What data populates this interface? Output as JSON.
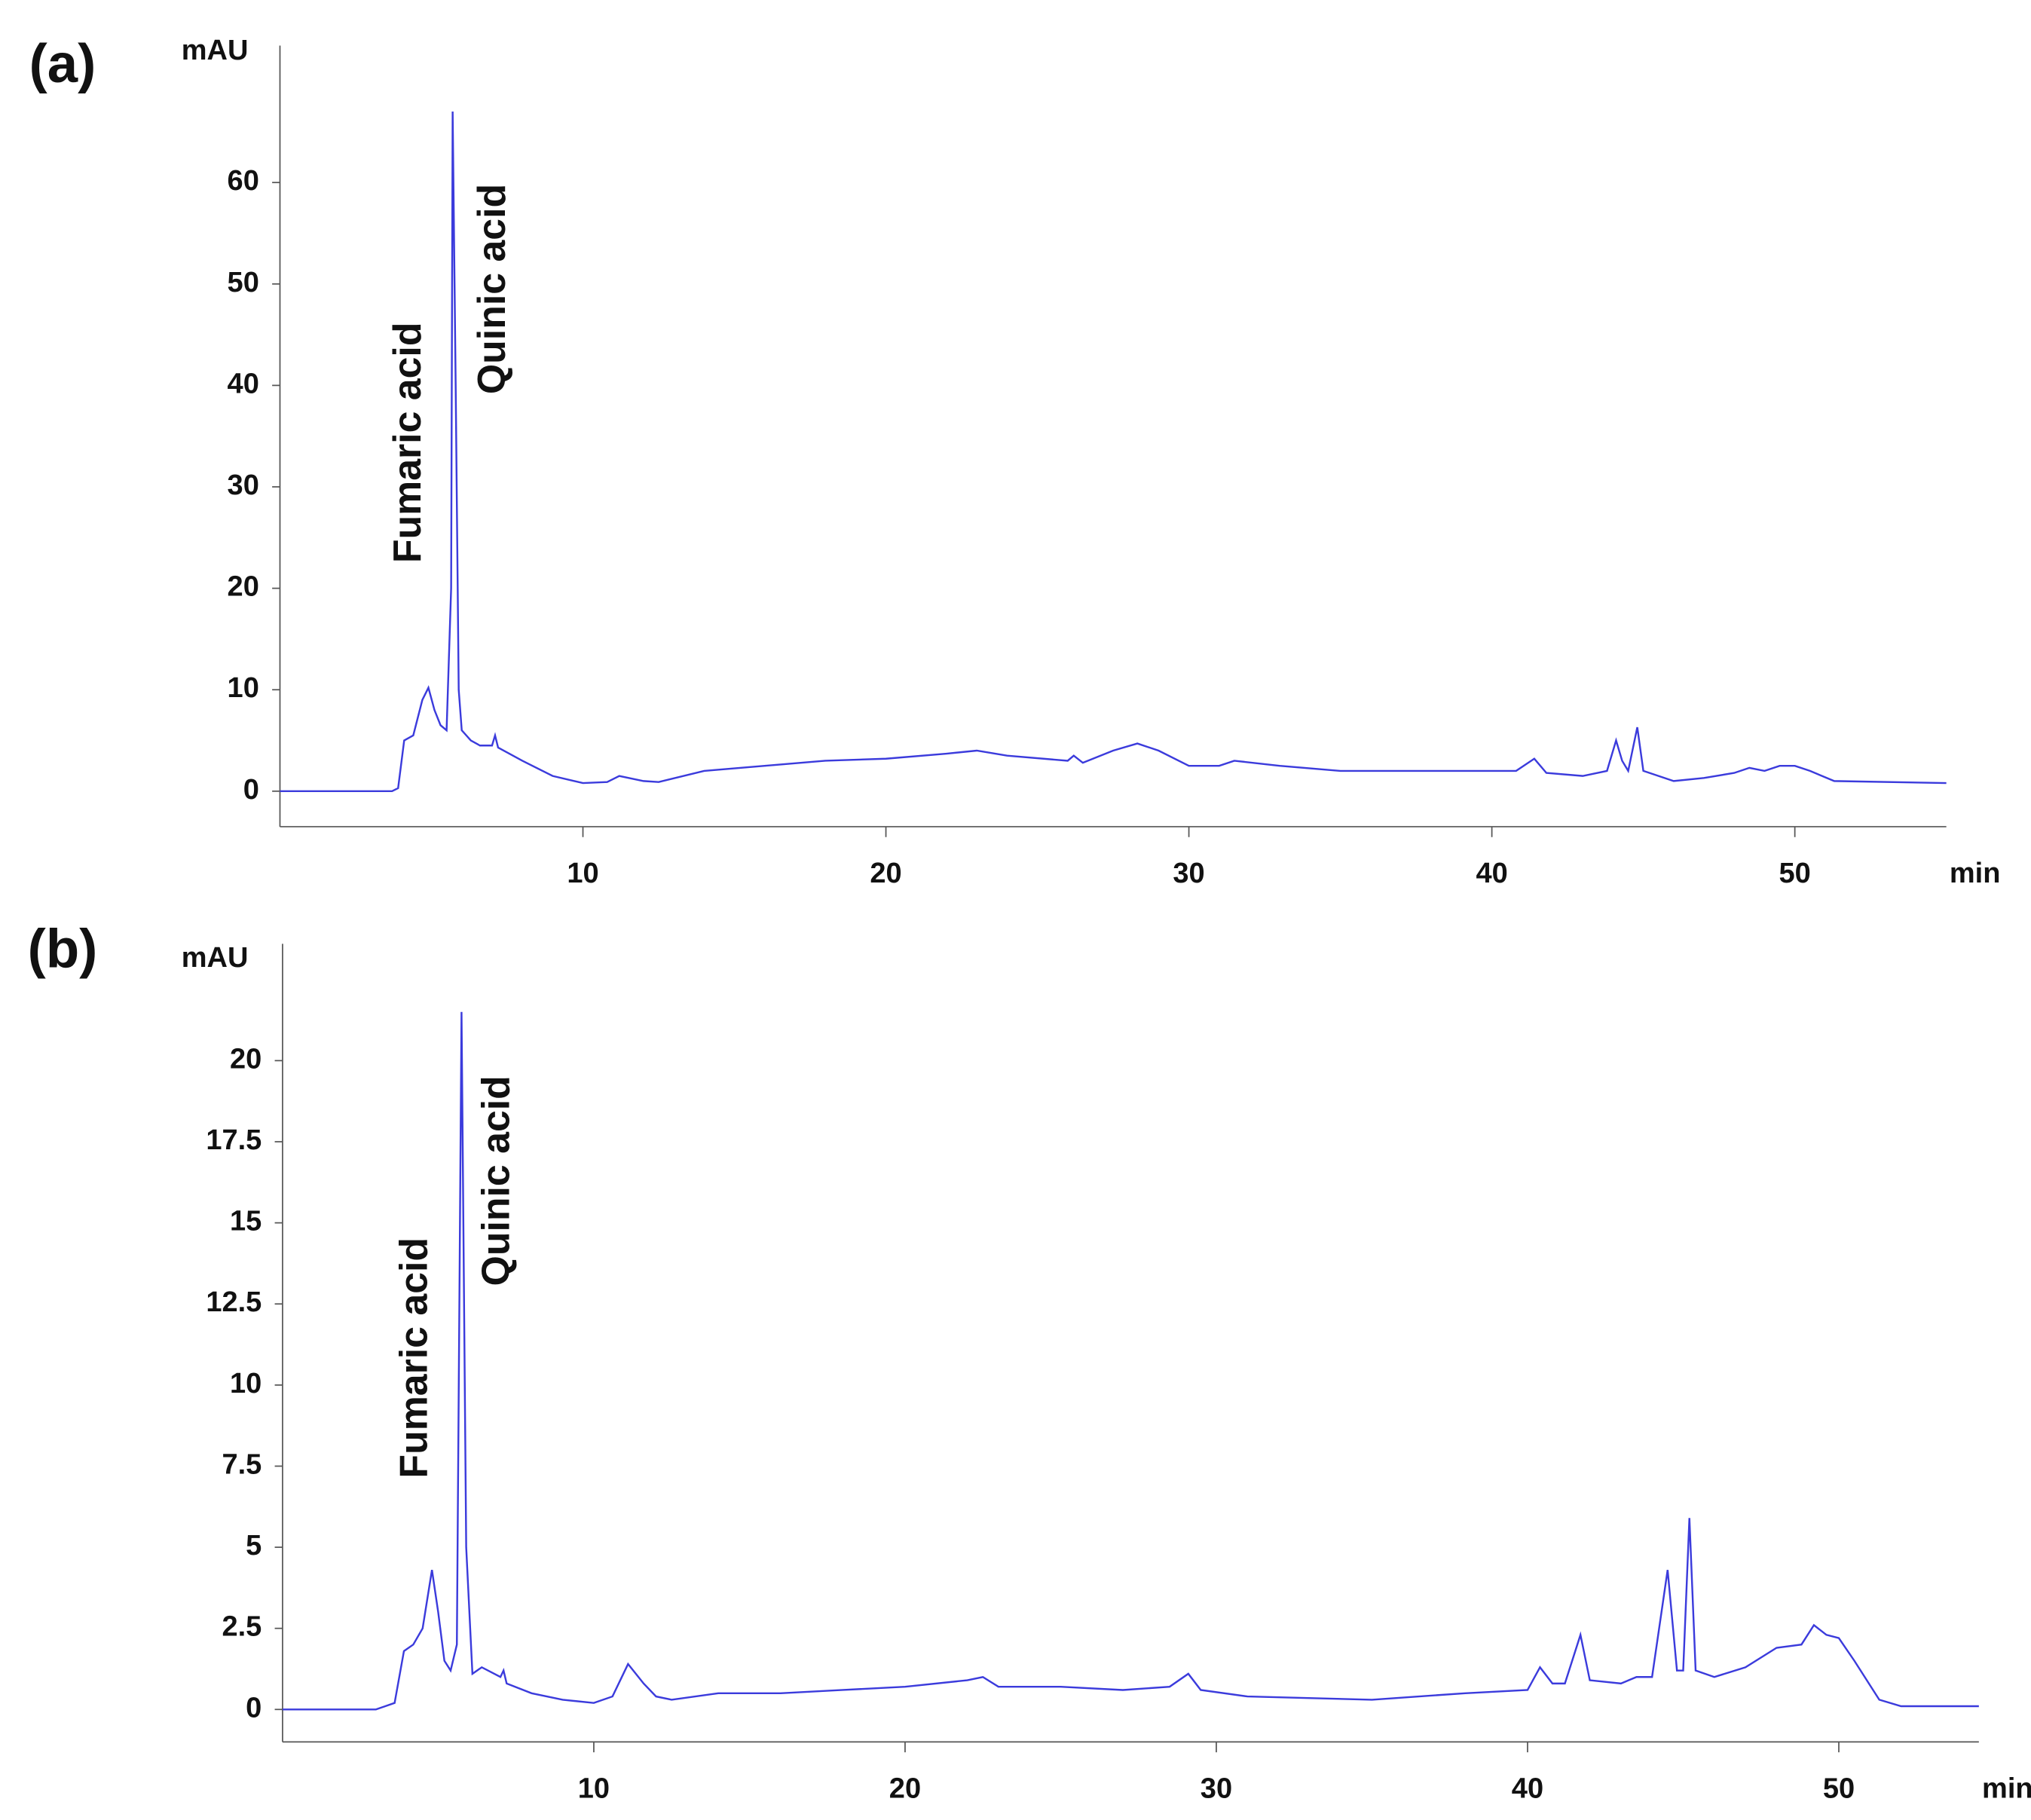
{
  "chart_data": [
    {
      "type": "line",
      "panel_label": "(a)",
      "y_label": "mAU",
      "x_label": "min",
      "annotations": [
        "Fumaric acid",
        "Quinic acid"
      ],
      "xlim": [
        0,
        55
      ],
      "ylim": [
        -3.5,
        73.5
      ],
      "xticks": [
        10,
        20,
        30,
        40,
        50
      ],
      "yticks": [
        0,
        10,
        20,
        30,
        40,
        50,
        60
      ],
      "series": [
        {
          "name": "chromatogram",
          "color": "#3b3bdc",
          "x": [
            0,
            3.7,
            3.9,
            4.1,
            4.4,
            4.7,
            4.9,
            5.1,
            5.3,
            5.5,
            5.65,
            5.7,
            5.8,
            5.9,
            6.0,
            6.3,
            6.6,
            7.0,
            7.1,
            7.2,
            8,
            9,
            10,
            10.8,
            11.2,
            12,
            12.5,
            14,
            16,
            18,
            20,
            22,
            23,
            24,
            26,
            26.2,
            26.5,
            27.5,
            28.3,
            29,
            30,
            31,
            31.5,
            33,
            35,
            38,
            40,
            40.8,
            41.4,
            41.8,
            43,
            43.8,
            44.1,
            44.3,
            44.5,
            44.8,
            45,
            46,
            47,
            48,
            48.5,
            49,
            49.5,
            50,
            50.5,
            51.3,
            55
          ],
          "values": [
            0,
            0,
            0.3,
            5,
            5.5,
            9,
            10.2,
            8,
            6.5,
            6,
            20,
            67,
            40,
            10,
            6,
            5,
            4.5,
            4.5,
            5.5,
            4.3,
            3,
            1.5,
            0.8,
            0.9,
            1.5,
            1,
            0.9,
            2,
            2.5,
            3,
            3.2,
            3.7,
            4,
            3.5,
            3,
            3.5,
            2.8,
            4,
            4.7,
            4,
            2.5,
            2.5,
            3,
            2.5,
            2,
            2,
            2,
            2,
            3.2,
            1.8,
            1.5,
            2,
            5,
            3,
            2,
            6.3,
            2,
            1,
            1.3,
            1.8,
            2.3,
            2,
            2.5,
            2.5,
            2,
            1,
            0.8
          ]
        }
      ]
    },
    {
      "type": "line",
      "panel_label": "(b)",
      "y_label": "mAU",
      "x_label": "min",
      "annotations": [
        "Fumaric acid",
        "Quinic acid"
      ],
      "xlim": [
        0,
        54.5
      ],
      "ylim": [
        -1,
        23.6
      ],
      "xticks": [
        10,
        20,
        30,
        40,
        50
      ],
      "yticks": [
        0,
        2.5,
        5,
        7.5,
        10,
        12.5,
        15,
        17.5,
        20
      ],
      "series": [
        {
          "name": "chromatogram",
          "color": "#3b3bdc",
          "x": [
            0,
            3,
            3.6,
            3.9,
            4.2,
            4.5,
            4.8,
            5.0,
            5.2,
            5.4,
            5.6,
            5.75,
            5.9,
            6.1,
            6.4,
            7,
            7.1,
            7.2,
            8,
            9,
            10,
            10.6,
            11.1,
            11.6,
            12,
            12.5,
            14,
            16,
            18,
            20,
            22,
            22.5,
            23,
            25,
            27,
            28.5,
            29.1,
            29.5,
            31,
            35,
            38,
            40,
            40.4,
            40.8,
            41.2,
            41.7,
            42,
            43,
            43.5,
            44,
            44.5,
            44.8,
            45.0,
            45.2,
            45.4,
            46,
            47,
            48,
            48.8,
            49.2,
            49.6,
            50,
            50.5,
            51.3,
            52,
            54.5
          ],
          "values": [
            0,
            0,
            0.2,
            1.8,
            2,
            2.5,
            4.3,
            3,
            1.5,
            1.2,
            2,
            21.5,
            5,
            1.1,
            1.3,
            1,
            1.2,
            0.8,
            0.5,
            0.3,
            0.2,
            0.4,
            1.4,
            0.8,
            0.4,
            0.3,
            0.5,
            0.5,
            0.6,
            0.7,
            0.9,
            1,
            0.7,
            0.7,
            0.6,
            0.7,
            1.1,
            0.6,
            0.4,
            0.3,
            0.5,
            0.6,
            1.3,
            0.8,
            0.8,
            2.3,
            0.9,
            0.8,
            1,
            1,
            4.3,
            1.2,
            1.2,
            5.9,
            1.2,
            1,
            1.3,
            1.9,
            2,
            2.6,
            2.3,
            2.2,
            1.5,
            0.3,
            0.1,
            0.1
          ]
        }
      ]
    }
  ]
}
